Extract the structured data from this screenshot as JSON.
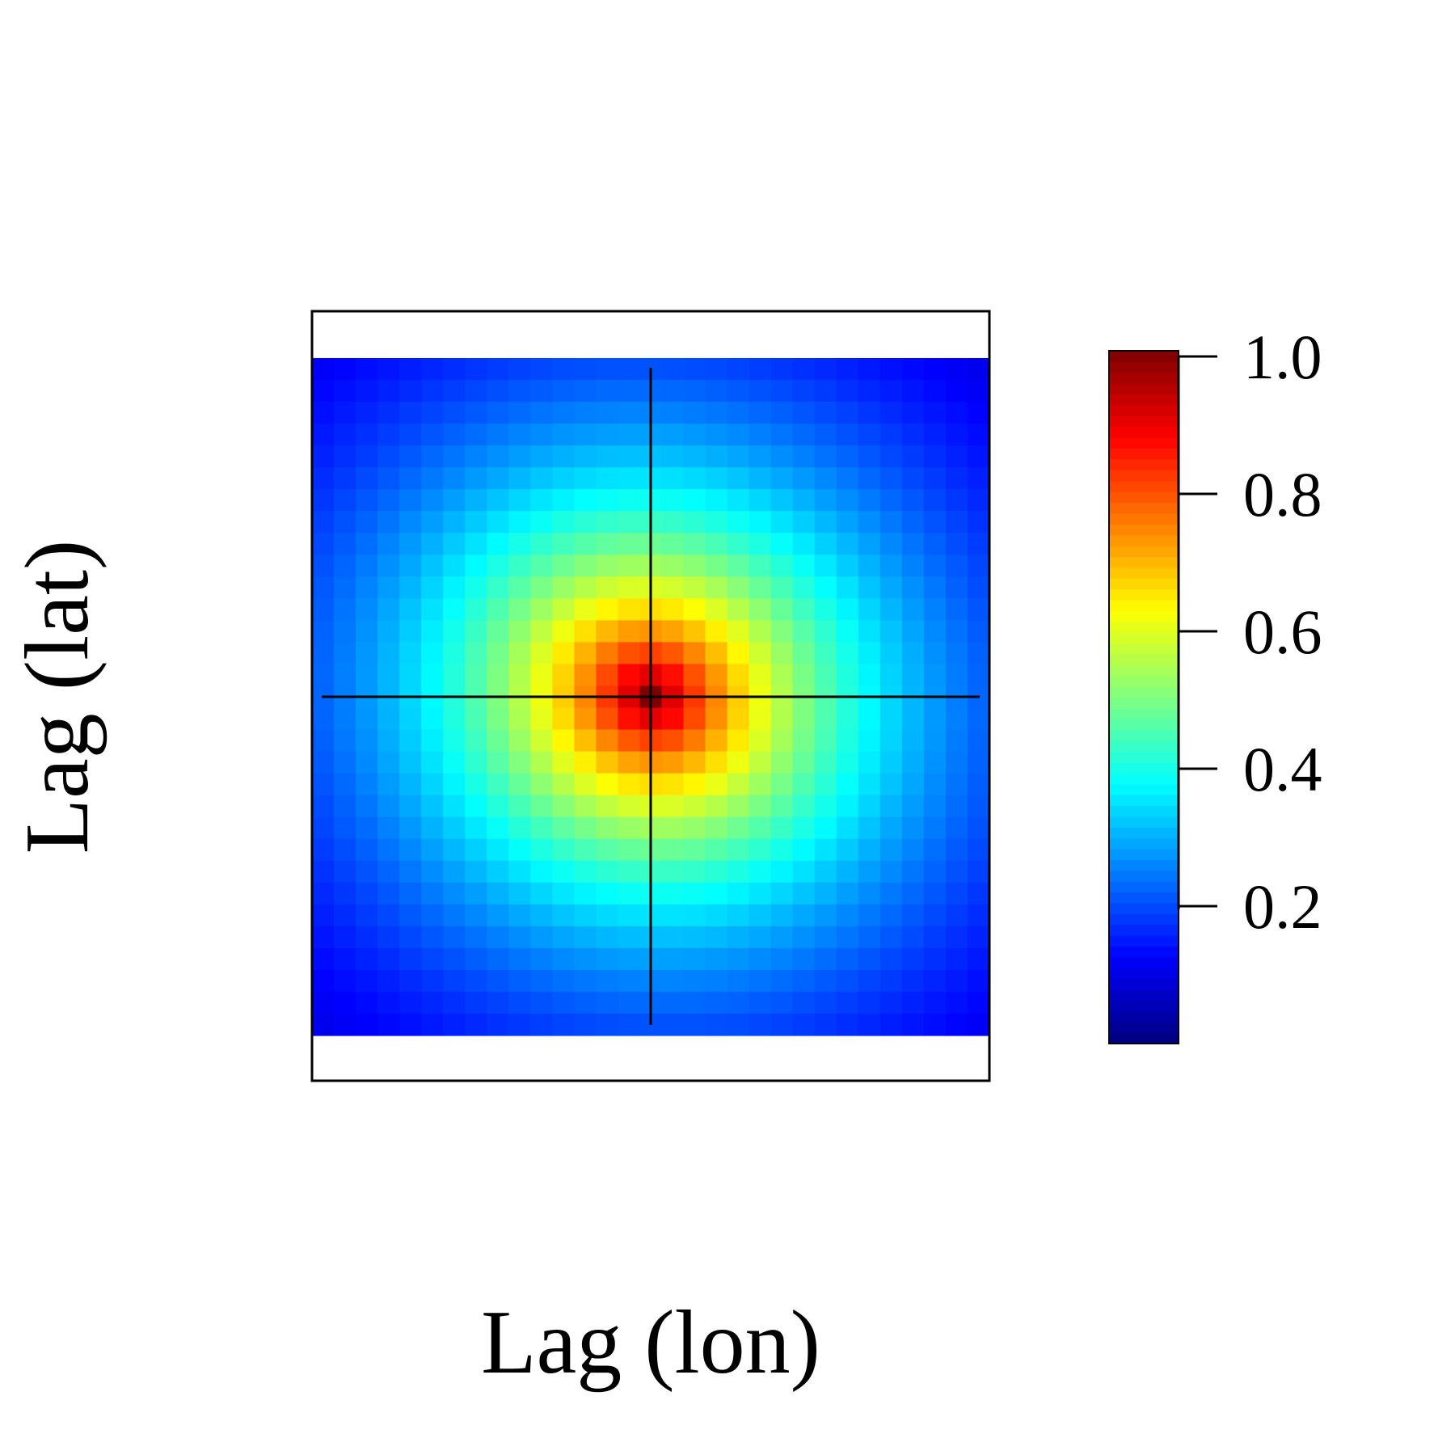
{
  "chart_data": {
    "type": "heatmap",
    "title": "",
    "xlabel": "Lag (lon)",
    "ylabel": "Lag (lat)",
    "grid_cols": 31,
    "grid_rows": 31,
    "value_model": {
      "peak": 1.0,
      "center_col": 15,
      "center_row": 15,
      "decay_x": 0.16,
      "decay_y": 0.17,
      "tilt_xy": 0.05
    },
    "value_range": [
      0,
      1
    ],
    "crosshair": "lag (0, 0)",
    "colormap": [
      "#00007f",
      "#0000ff",
      "#007fff",
      "#00ffff",
      "#7fff7f",
      "#ffff00",
      "#ff7f00",
      "#ff0000",
      "#7f0000"
    ],
    "colorbar": {
      "placement": "right",
      "ticks": [
        {
          "value": 1.0,
          "label": "1.0"
        },
        {
          "value": 0.8,
          "label": "0.8"
        },
        {
          "value": 0.6,
          "label": "0.6"
        },
        {
          "value": 0.4,
          "label": "0.4"
        },
        {
          "value": 0.2,
          "label": "0.2"
        }
      ]
    }
  }
}
